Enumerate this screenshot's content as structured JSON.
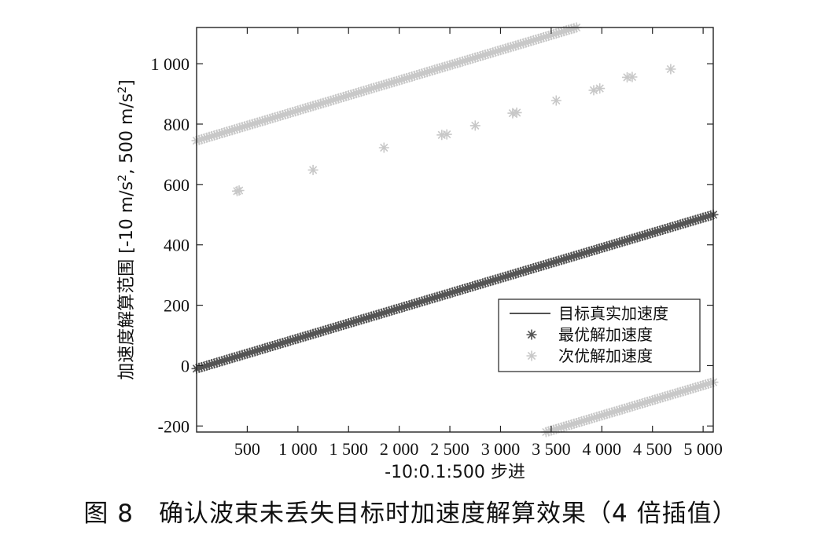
{
  "caption": "图 8　确认波束未丢失目标时加速度解算效果（4 倍插值）",
  "chart_data": {
    "type": "scatter",
    "xlabel": "-10:0.1:500 步进",
    "ylabel_main": "加速度解算范围 [-10 m/s",
    "ylabel_mid": ", 500 m/s",
    "ylabel_end": "]",
    "ylabel_sup": "2",
    "xlim": [
      0,
      5100
    ],
    "ylim": [
      -220,
      1120
    ],
    "xticks": [
      {
        "value": 500,
        "label": "500"
      },
      {
        "value": 1000,
        "label": "1 000"
      },
      {
        "value": 1500,
        "label": "1 500"
      },
      {
        "value": 2000,
        "label": "2 000"
      },
      {
        "value": 2500,
        "label": "2 500"
      },
      {
        "value": 3000,
        "label": "3 000"
      },
      {
        "value": 3500,
        "label": "3 500"
      },
      {
        "value": 4000,
        "label": "4 000"
      },
      {
        "value": 4500,
        "label": "4 500"
      },
      {
        "value": 5000,
        "label": "5 000"
      }
    ],
    "yticks": [
      {
        "value": -200,
        "label": "-200"
      },
      {
        "value": 0,
        "label": "0"
      },
      {
        "value": 200,
        "label": "200"
      },
      {
        "value": 400,
        "label": "400"
      },
      {
        "value": 600,
        "label": "600"
      },
      {
        "value": 800,
        "label": "800"
      },
      {
        "value": 1000,
        "label": "1 000"
      }
    ],
    "legend_position": "lower-right",
    "grid": false,
    "series": [
      {
        "name": "目标真实加速度",
        "kind": "line",
        "color": "#1a1a1a",
        "x": [
          0,
          5100
        ],
        "y": [
          -10,
          500
        ]
      },
      {
        "name": "最优解加速度",
        "kind": "marker",
        "color": "#555555",
        "x_start": 0,
        "x_end": 5100,
        "step": 25,
        "y_at_start": -10,
        "y_at_end": 500
      },
      {
        "name": "次优解加速度",
        "kind": "marker",
        "color": "#c8c8c8",
        "upper_band": {
          "x_start": 0,
          "x_end": 3750,
          "step": 25,
          "y_at_start": 745,
          "y_at_end": 1120
        },
        "lower_band": {
          "x_start": 3450,
          "x_end": 5100,
          "step": 25,
          "y_at_start": -220,
          "y_at_end": -55
        },
        "middle_points": [
          {
            "x": 400,
            "y": 578
          },
          {
            "x": 420,
            "y": 580
          },
          {
            "x": 1150,
            "y": 648
          },
          {
            "x": 1850,
            "y": 722
          },
          {
            "x": 2420,
            "y": 764
          },
          {
            "x": 2470,
            "y": 766
          },
          {
            "x": 2750,
            "y": 795
          },
          {
            "x": 3120,
            "y": 836
          },
          {
            "x": 3160,
            "y": 838
          },
          {
            "x": 3550,
            "y": 878
          },
          {
            "x": 3920,
            "y": 912
          },
          {
            "x": 3980,
            "y": 918
          },
          {
            "x": 4250,
            "y": 955
          },
          {
            "x": 4300,
            "y": 956
          },
          {
            "x": 4680,
            "y": 982
          }
        ]
      }
    ]
  }
}
